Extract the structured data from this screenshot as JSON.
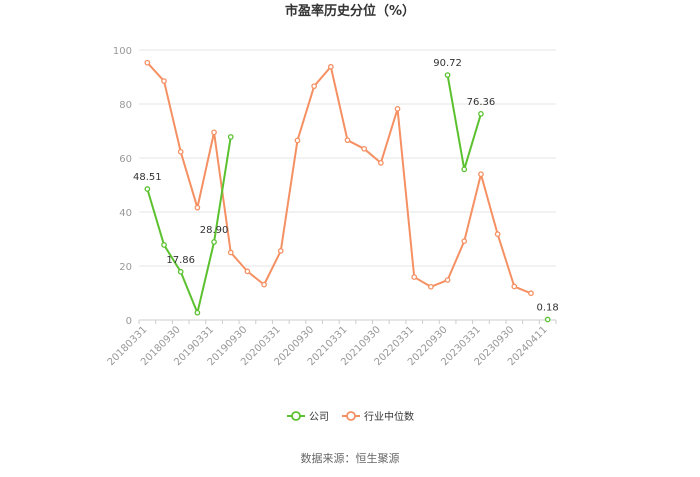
{
  "chart_data": {
    "type": "line",
    "title": "市盈率历史分位（%）",
    "source": "数据来源：恒生聚源",
    "ylim": [
      0,
      100
    ],
    "yticks": [
      0,
      20,
      40,
      60,
      80,
      100
    ],
    "x": [
      "20180331",
      "20180630",
      "20180930",
      "20181231",
      "20190331",
      "20190630",
      "20190930",
      "20191231",
      "20200331",
      "20200630",
      "20200930",
      "20201231",
      "20210331",
      "20210630",
      "20210930",
      "20211231",
      "20220331",
      "20220630",
      "20220930",
      "20221231",
      "20230331",
      "20230630",
      "20230930",
      "20231231",
      "20240411"
    ],
    "xtick_labels": [
      "20180331",
      "20180930",
      "20190331",
      "20190930",
      "20200331",
      "20200930",
      "20210331",
      "20210930",
      "20220331",
      "20220930",
      "20230331",
      "20230930",
      "20240411"
    ],
    "grid": true,
    "legend_position": "bottom",
    "colors": {
      "company": "#5bc12f",
      "industry": "#f59063",
      "grid": "#e6e6e6",
      "axis_text": "#999999"
    },
    "series": [
      {
        "name": "公司",
        "color": "#5bc12f",
        "values": [
          48.51,
          27.8,
          17.86,
          2.7,
          28.9,
          67.8,
          null,
          null,
          null,
          null,
          null,
          null,
          null,
          null,
          null,
          null,
          null,
          null,
          90.72,
          55.8,
          76.36,
          null,
          null,
          null,
          0.18
        ]
      },
      {
        "name": "行业中位数",
        "color": "#f59063",
        "values": [
          95.3,
          88.5,
          62.3,
          41.6,
          69.5,
          25.0,
          18.0,
          13.1,
          25.6,
          66.5,
          86.6,
          93.8,
          66.6,
          63.4,
          58.2,
          78.2,
          15.9,
          12.3,
          14.8,
          29.2,
          54.0,
          31.8,
          12.4,
          9.9,
          null
        ]
      }
    ],
    "annotations": [
      {
        "series": 0,
        "index": 0,
        "text": "48.51"
      },
      {
        "series": 0,
        "index": 2,
        "text": "17.86"
      },
      {
        "series": 0,
        "index": 4,
        "text": "28.90"
      },
      {
        "series": 0,
        "index": 18,
        "text": "90.72"
      },
      {
        "series": 0,
        "index": 20,
        "text": "76.36"
      },
      {
        "series": 0,
        "index": 24,
        "text": "0.18"
      }
    ]
  }
}
